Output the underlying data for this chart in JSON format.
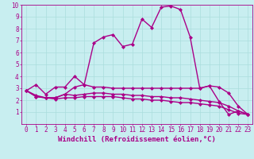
{
  "background_color": "#c8eef0",
  "grid_color": "#aadddd",
  "line_color": "#aa0088",
  "xlim": [
    -0.5,
    23.5
  ],
  "ylim": [
    0,
    10
  ],
  "xlabel": "Windchill (Refroidissement éolien,°C)",
  "xlabel_fontsize": 6.5,
  "tick_fontsize": 5.5,
  "xtick_labels": [
    "0",
    "1",
    "2",
    "3",
    "4",
    "5",
    "6",
    "7",
    "8",
    "9",
    "10",
    "11",
    "12",
    "13",
    "14",
    "15",
    "16",
    "17",
    "18",
    "19",
    "20",
    "21",
    "22",
    "23"
  ],
  "ytick_labels": [
    "1",
    "2",
    "3",
    "4",
    "5",
    "6",
    "7",
    "8",
    "9",
    "10"
  ],
  "series": [
    {
      "x": [
        0,
        1,
        2,
        3,
        4,
        5,
        6,
        7,
        8,
        9,
        10,
        11,
        12,
        13,
        14,
        15,
        16,
        17,
        18,
        19,
        20,
        21,
        22,
        23
      ],
      "y": [
        2.8,
        3.3,
        2.5,
        3.1,
        3.1,
        4.0,
        3.3,
        6.8,
        7.3,
        7.5,
        6.5,
        6.7,
        8.8,
        8.1,
        9.8,
        9.9,
        9.6,
        7.3,
        3.0,
        3.2,
        1.9,
        0.8,
        1.1,
        0.8
      ]
    },
    {
      "x": [
        0,
        1,
        2,
        3,
        4,
        5,
        6,
        7,
        8,
        9,
        10,
        11,
        12,
        13,
        14,
        15,
        16,
        17,
        18,
        19,
        20,
        21,
        22,
        23
      ],
      "y": [
        2.8,
        2.4,
        2.2,
        2.2,
        2.5,
        3.1,
        3.3,
        3.1,
        3.1,
        3.0,
        3.0,
        3.0,
        3.0,
        3.0,
        3.0,
        3.0,
        3.0,
        3.0,
        3.0,
        3.2,
        3.1,
        2.6,
        1.5,
        0.8
      ]
    },
    {
      "x": [
        0,
        1,
        2,
        3,
        4,
        5,
        6,
        7,
        8,
        9,
        10,
        11,
        12,
        13,
        14,
        15,
        16,
        17,
        18,
        19,
        20,
        21,
        22,
        23
      ],
      "y": [
        2.8,
        2.3,
        2.2,
        2.2,
        2.5,
        2.4,
        2.5,
        2.6,
        2.6,
        2.5,
        2.5,
        2.4,
        2.4,
        2.3,
        2.3,
        2.2,
        2.2,
        2.1,
        2.0,
        1.9,
        1.8,
        1.5,
        1.1,
        0.8
      ]
    },
    {
      "x": [
        0,
        1,
        2,
        3,
        4,
        5,
        6,
        7,
        8,
        9,
        10,
        11,
        12,
        13,
        14,
        15,
        16,
        17,
        18,
        19,
        20,
        21,
        22,
        23
      ],
      "y": [
        2.8,
        2.3,
        2.2,
        2.1,
        2.2,
        2.2,
        2.3,
        2.3,
        2.3,
        2.3,
        2.2,
        2.1,
        2.1,
        2.0,
        2.0,
        1.9,
        1.8,
        1.8,
        1.7,
        1.6,
        1.5,
        1.2,
        0.9,
        0.8
      ]
    }
  ],
  "marker": "D",
  "marker_size": 2.0,
  "line_width": 1.0
}
